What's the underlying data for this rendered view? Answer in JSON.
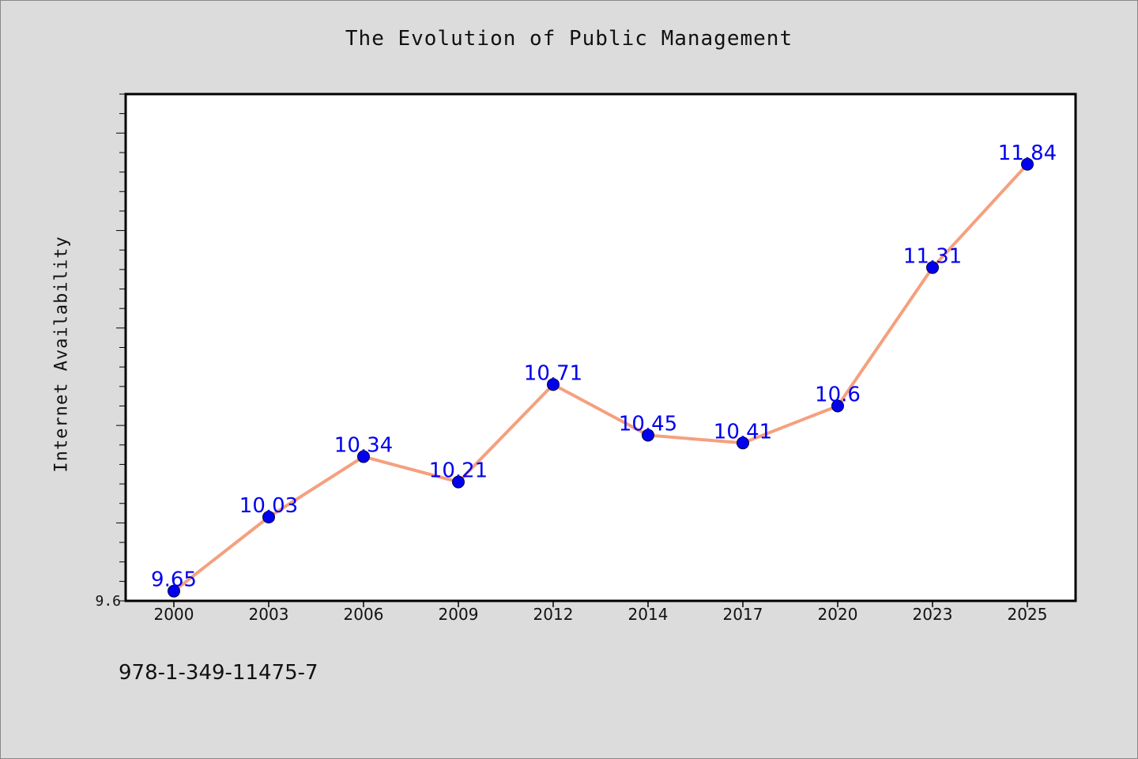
{
  "chart_data": {
    "type": "line",
    "title": "The Evolution of Public Management",
    "xlabel": "",
    "ylabel": "Internet Availability",
    "categories": [
      "2000",
      "2003",
      "2006",
      "2009",
      "2012",
      "2014",
      "2017",
      "2020",
      "2023",
      "2025"
    ],
    "series": [
      {
        "values": [
          9.65,
          10.03,
          10.34,
          10.21,
          10.71,
          10.45,
          10.41,
          10.6,
          11.31,
          11.84
        ],
        "labels": [
          "9.65",
          "10.03",
          "10.34",
          "10.21",
          "10.71",
          "10.45",
          "10.41",
          "10.6",
          "11.31",
          "11.84"
        ],
        "line_color": "#f5a07e",
        "marker_color": "#0000ee"
      }
    ],
    "ylim": [
      9.6,
      12.2
    ],
    "ytick_labels": [
      {
        "value": 9.6,
        "label": "9.6"
      }
    ],
    "grid": false,
    "legend": "none"
  },
  "footer": {
    "isbn": "978-1-349-11475-7"
  }
}
